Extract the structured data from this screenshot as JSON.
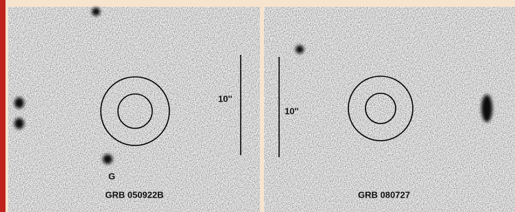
{
  "panels": [
    {
      "scale_label": "10''",
      "source_label": "G",
      "title": "GRB 050922B"
    },
    {
      "scale_label": "10''",
      "title": "GRB 080727"
    }
  ]
}
